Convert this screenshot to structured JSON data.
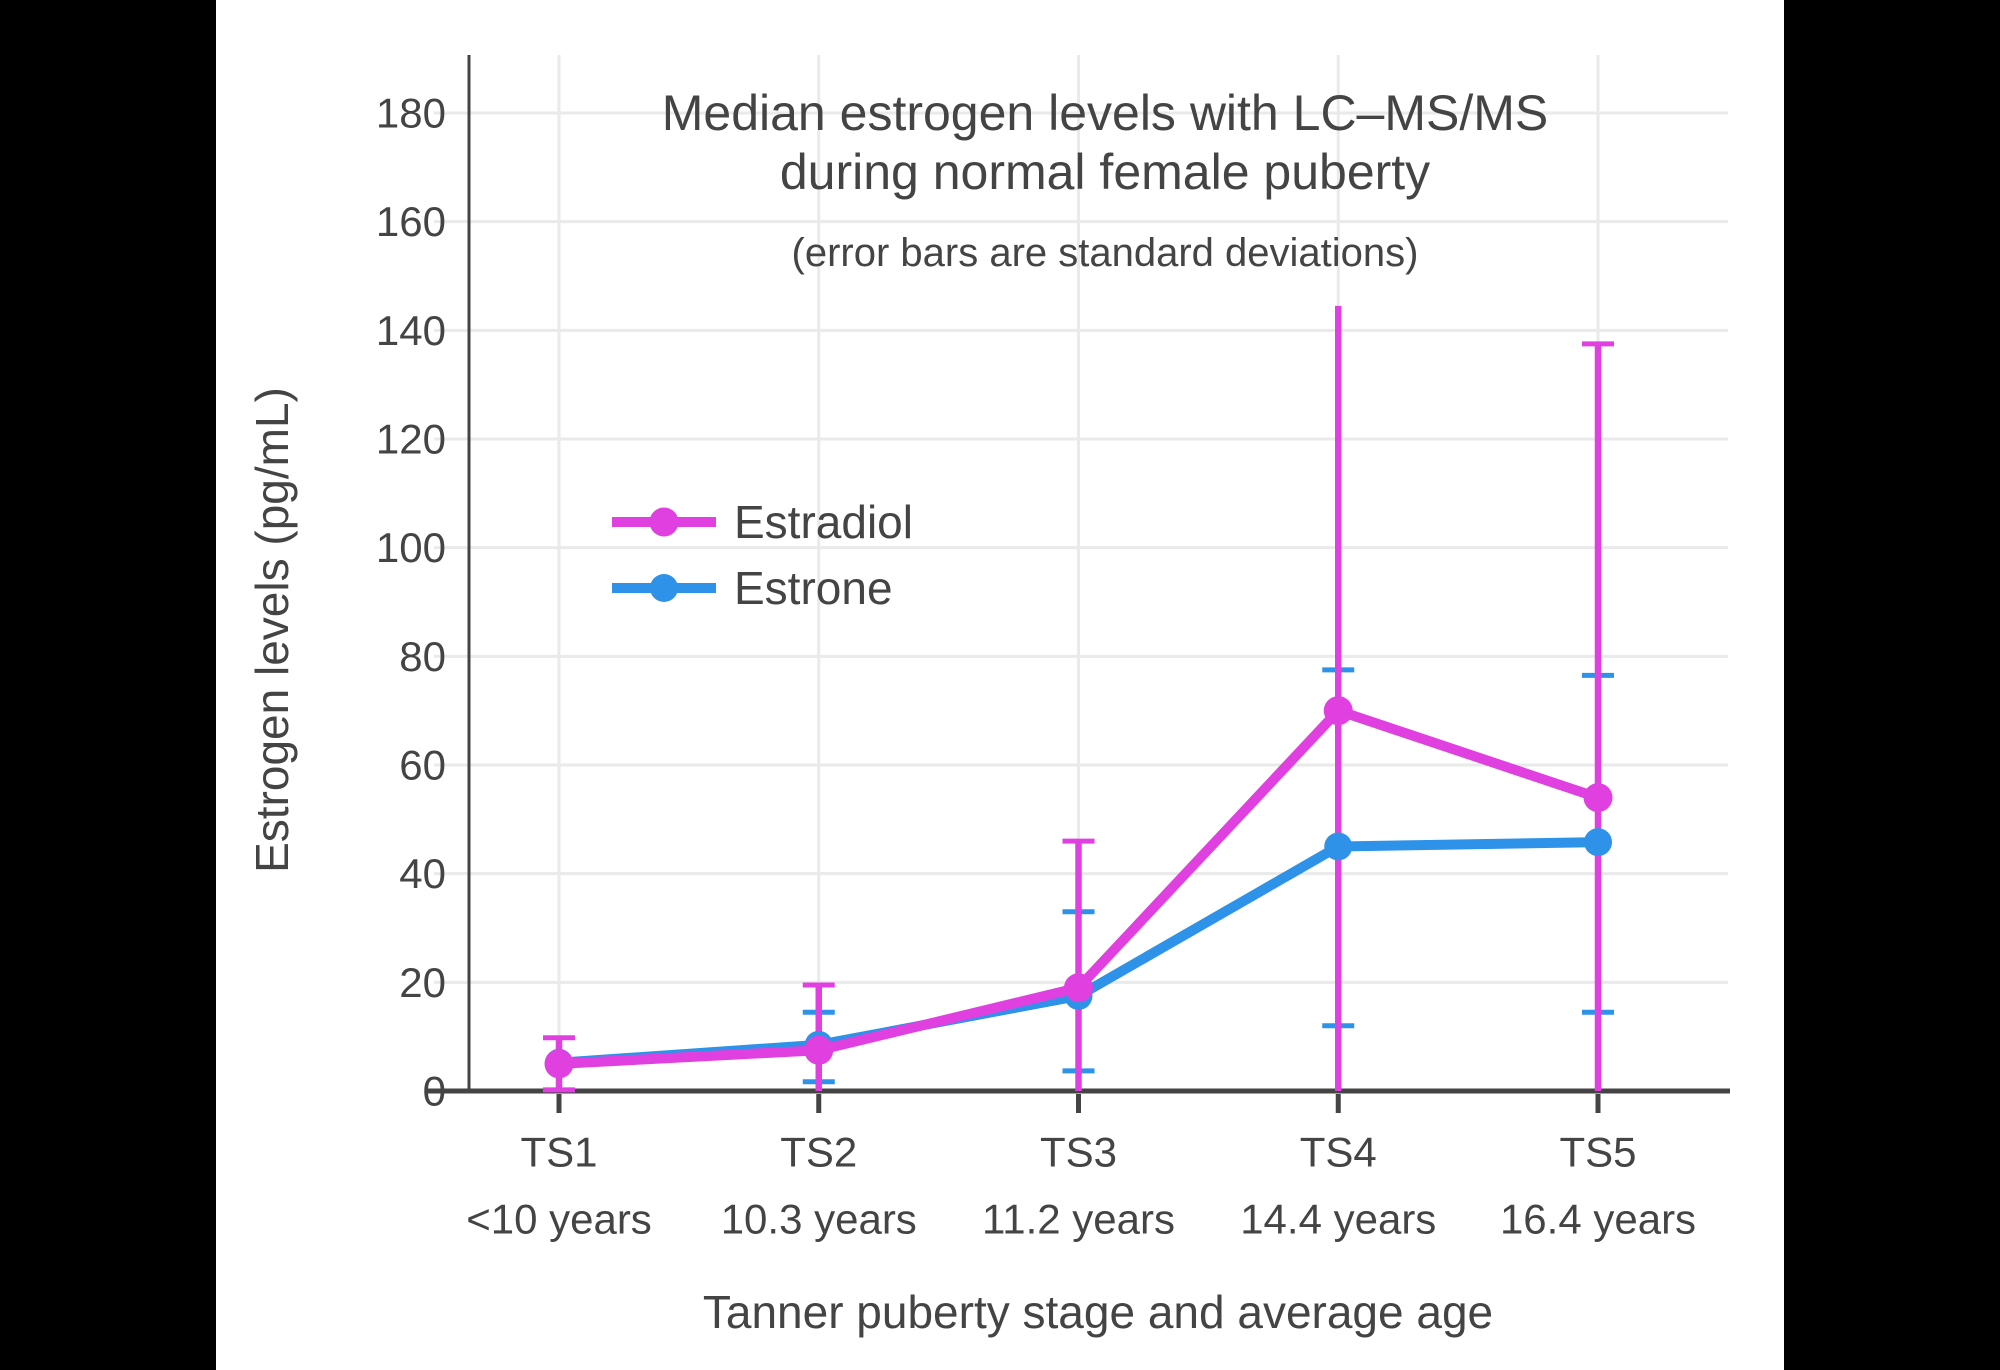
{
  "page": {
    "background_color": "#000000",
    "panel_background_color": "#ffffff"
  },
  "chart_data": {
    "type": "line",
    "title_line1": "Median estrogen levels with LC–MS/MS",
    "title_line2": "during normal female puberty",
    "subtitle": "(error bars are standard deviations)",
    "xlabel": "Tanner puberty stage and average age",
    "ylabel": "Estrogen levels (pg/mL)",
    "categories": [
      "TS1",
      "TS2",
      "TS3",
      "TS4",
      "TS5"
    ],
    "category_ages": [
      "<10 years",
      "10.3 years",
      "11.2 years",
      "14.4 years",
      "16.4 years"
    ],
    "y_ticks": [
      0,
      20,
      40,
      60,
      80,
      100,
      120,
      140,
      160,
      180
    ],
    "ylim": [
      0,
      190
    ],
    "grid": true,
    "legend_position": "inside-upper-left",
    "text_color": "#444444",
    "axis_color": "#444444",
    "grid_color": "#EAEAEA",
    "series": [
      {
        "name": "Estradiol",
        "color": "#E040E0",
        "values": [
          5,
          7.5,
          19,
          70,
          54
        ],
        "error_upper": [
          9.8,
          19.5,
          46,
          144.5,
          137.5
        ],
        "error_lower": [
          0.2,
          0,
          0,
          0,
          0
        ],
        "upper_cap": [
          true,
          true,
          true,
          false,
          true
        ],
        "lower_cap": [
          true,
          false,
          false,
          false,
          false
        ]
      },
      {
        "name": "Estrone",
        "color": "#2E92E8",
        "values": [
          5.2,
          8.5,
          17.5,
          45,
          45.8
        ],
        "error_upper": [
          null,
          14.5,
          33,
          77.5,
          76.5
        ],
        "error_lower": [
          null,
          1.7,
          3.7,
          12,
          14.5
        ],
        "upper_cap": [
          false,
          true,
          true,
          true,
          true
        ],
        "lower_cap": [
          false,
          true,
          true,
          true,
          true
        ]
      }
    ]
  }
}
